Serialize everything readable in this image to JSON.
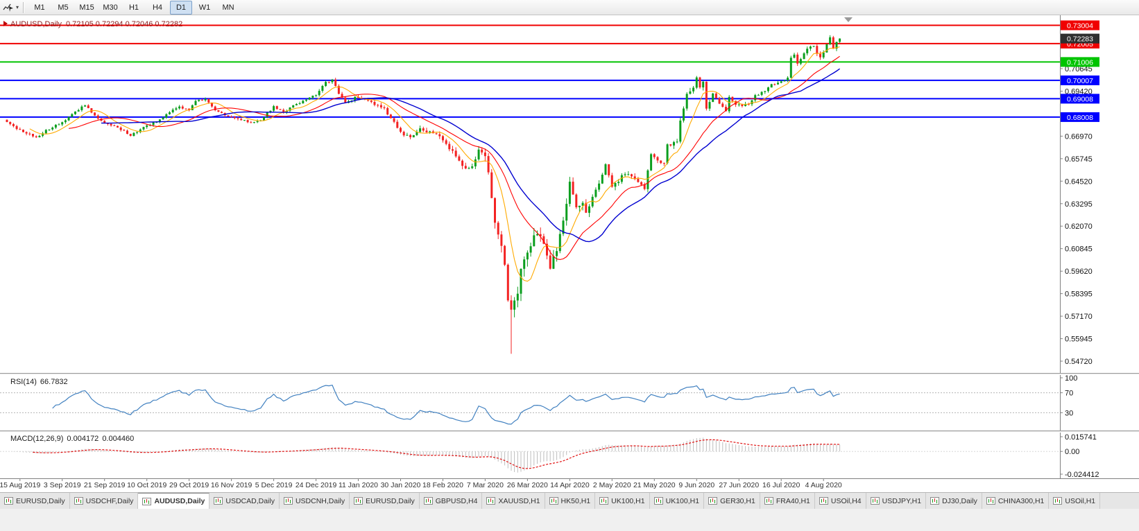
{
  "toolbar": {
    "timeframes": [
      {
        "label": "M1",
        "active": false
      },
      {
        "label": "M5",
        "active": false
      },
      {
        "label": "M15",
        "active": false
      },
      {
        "label": "M30",
        "active": false
      },
      {
        "label": "H1",
        "active": false
      },
      {
        "label": "H4",
        "active": false
      },
      {
        "label": "D1",
        "active": true
      },
      {
        "label": "W1",
        "active": false
      },
      {
        "label": "MN",
        "active": false
      }
    ]
  },
  "chart": {
    "symbol_title": "AUDUSD,Daily",
    "ohlc_text": "0.72105 0.72294 0.72046 0.72282",
    "current_price_label": "0.72283",
    "current_price": 0.72283,
    "price_range": {
      "top": 0.7355,
      "bottom": 0.5408
    },
    "levels": [
      {
        "label": "0.73004",
        "price": 0.73004,
        "color": "#f00000"
      },
      {
        "label": "0.72005",
        "price": 0.72005,
        "color": "#f00000"
      },
      {
        "label": "0.71006",
        "price": 0.71006,
        "color": "#00c400"
      },
      {
        "label": "0.70007",
        "price": 0.70007,
        "color": "#0000ff"
      },
      {
        "label": "0.69008",
        "price": 0.69008,
        "color": "#0000ff"
      },
      {
        "label": "0.68008",
        "price": 0.68008,
        "color": "#0000ff"
      }
    ],
    "axis_ticks": [
      {
        "label": "0.70645",
        "price": 0.70645
      },
      {
        "label": "0.69420",
        "price": 0.6942
      },
      {
        "label": "0.66970",
        "price": 0.6697
      },
      {
        "label": "0.65745",
        "price": 0.65745
      },
      {
        "label": "0.64520",
        "price": 0.6452
      },
      {
        "label": "0.63295",
        "price": 0.63295
      },
      {
        "label": "0.62070",
        "price": 0.6207
      },
      {
        "label": "0.60845",
        "price": 0.60845
      },
      {
        "label": "0.59620",
        "price": 0.5962
      },
      {
        "label": "0.58395",
        "price": 0.58395
      },
      {
        "label": "0.57170",
        "price": 0.5717
      },
      {
        "label": "0.55945",
        "price": 0.55945
      },
      {
        "label": "0.54720",
        "price": 0.5472
      }
    ]
  },
  "rsi_panel": {
    "name": "RSI(14)",
    "value": "66.7832",
    "levels": [
      70,
      30
    ],
    "scale_labels": [
      {
        "label": "100",
        "value": 100
      },
      {
        "label": "70",
        "value": 70
      },
      {
        "label": "30",
        "value": 30
      }
    ],
    "line_color": "#4080c0"
  },
  "macd_panel": {
    "name": "MACD(12,26,9)",
    "value_macd": "0.004172",
    "value_signal": "0.004460",
    "scale_max": 0.015741,
    "scale_min": -0.024412,
    "scale_labels": [
      {
        "label": "0.015741",
        "value": 0.015741
      },
      {
        "label": "0.00",
        "value": 0
      },
      {
        "label": "-0.024412",
        "value": -0.024412
      }
    ],
    "histogram_color": "#bdbdbd",
    "signal_color": "#e01010"
  },
  "time_axis": [
    "15 Aug 2019",
    "3 Sep 2019",
    "21 Sep 2019",
    "10 Oct 2019",
    "29 Oct 2019",
    "16 Nov 2019",
    "5 Dec 2019",
    "24 Dec 2019",
    "11 Jan 2020",
    "30 Jan 2020",
    "18 Feb 2020",
    "7 Mar 2020",
    "26 Mar 2020",
    "14 Apr 2020",
    "2 May 2020",
    "21 May 2020",
    "9 Jun 2020",
    "27 Jun 2020",
    "16 Jul 2020",
    "4 Aug 2020"
  ],
  "tabs": [
    {
      "label": "EURUSD,Daily",
      "active": false
    },
    {
      "label": "USDCHF,Daily",
      "active": false
    },
    {
      "label": "AUDUSD,Daily",
      "active": true
    },
    {
      "label": "USDCAD,Daily",
      "active": false
    },
    {
      "label": "USDCNH,Daily",
      "active": false
    },
    {
      "label": "EURUSD,Daily",
      "active": false
    },
    {
      "label": "GBPUSD,H4",
      "active": false
    },
    {
      "label": "XAUUSD,H1",
      "active": false
    },
    {
      "label": "HK50,H1",
      "active": false
    },
    {
      "label": "UK100,H1",
      "active": false
    },
    {
      "label": "UK100,H1",
      "active": false
    },
    {
      "label": "GER30,H1",
      "active": false
    },
    {
      "label": "FRA40,H1",
      "active": false
    },
    {
      "label": "USOil,H4",
      "active": false
    },
    {
      "label": "USDJPY,H1",
      "active": false
    },
    {
      "label": "DJ30,Daily",
      "active": false
    },
    {
      "label": "CHINA300,H1",
      "active": false
    },
    {
      "label": "USOil,H1",
      "active": false
    }
  ],
  "chart_data": {
    "type": "candlestick",
    "symbol": "AUDUSD",
    "timeframe": "D1",
    "title": "AUDUSD,Daily",
    "visible_range": {
      "start": "15 Aug 2019",
      "end": "Aug 2020"
    },
    "last_bar": {
      "open": 0.72105,
      "high": 0.72294,
      "low": 0.72046,
      "close": 0.72282
    },
    "candle_count": 257,
    "first_label_index": 4,
    "label_step": 13,
    "horizontal_levels": [
      0.73004,
      0.72005,
      0.71006,
      0.70007,
      0.69008,
      0.68008
    ],
    "close_anchors": [
      [
        0,
        0.6775
      ],
      [
        3,
        0.674
      ],
      [
        6,
        0.6715
      ],
      [
        9,
        0.669
      ],
      [
        12,
        0.673
      ],
      [
        17,
        0.677
      ],
      [
        21,
        0.683
      ],
      [
        24,
        0.6865
      ],
      [
        27,
        0.6805
      ],
      [
        30,
        0.677
      ],
      [
        34,
        0.6745
      ],
      [
        38,
        0.67
      ],
      [
        43,
        0.6755
      ],
      [
        47,
        0.6785
      ],
      [
        50,
        0.683
      ],
      [
        53,
        0.6855
      ],
      [
        56,
        0.684
      ],
      [
        58,
        0.689
      ],
      [
        61,
        0.6895
      ],
      [
        64,
        0.684
      ],
      [
        67,
        0.681
      ],
      [
        70,
        0.6795
      ],
      [
        75,
        0.677
      ],
      [
        78,
        0.678
      ],
      [
        80,
        0.6825
      ],
      [
        82,
        0.6855
      ],
      [
        85,
        0.683
      ],
      [
        88,
        0.686
      ],
      [
        91,
        0.6885
      ],
      [
        95,
        0.6925
      ],
      [
        98,
        0.699
      ],
      [
        100,
        0.7
      ],
      [
        102,
        0.693
      ],
      [
        104,
        0.6875
      ],
      [
        107,
        0.6905
      ],
      [
        110,
        0.69
      ],
      [
        113,
        0.687
      ],
      [
        116,
        0.6845
      ],
      [
        119,
        0.677
      ],
      [
        121,
        0.6715
      ],
      [
        124,
        0.669
      ],
      [
        127,
        0.6735
      ],
      [
        130,
        0.672
      ],
      [
        134,
        0.668
      ],
      [
        137,
        0.661
      ],
      [
        141,
        0.6515
      ],
      [
        143,
        0.6535
      ],
      [
        145,
        0.6625
      ],
      [
        147,
        0.6585
      ],
      [
        148,
        0.65
      ],
      [
        150,
        0.6232
      ],
      [
        152,
        0.611
      ],
      [
        153,
        0.599
      ],
      [
        154,
        0.5785
      ],
      [
        155,
        0.574
      ],
      [
        156,
        0.5795
      ],
      [
        157,
        0.583
      ],
      [
        158,
        0.5965
      ],
      [
        160,
        0.6065
      ],
      [
        162,
        0.617
      ],
      [
        164,
        0.6135
      ],
      [
        166,
        0.606
      ],
      [
        167,
        0.599
      ],
      [
        169,
        0.6085
      ],
      [
        171,
        0.623
      ],
      [
        173,
        0.6445
      ],
      [
        175,
        0.632
      ],
      [
        177,
        0.6335
      ],
      [
        178,
        0.629
      ],
      [
        181,
        0.6395
      ],
      [
        184,
        0.655
      ],
      [
        186,
        0.642
      ],
      [
        190,
        0.6495
      ],
      [
        193,
        0.647
      ],
      [
        196,
        0.6415
      ],
      [
        198,
        0.659
      ],
      [
        200,
        0.6565
      ],
      [
        202,
        0.6545
      ],
      [
        203,
        0.665
      ],
      [
        206,
        0.6665
      ],
      [
        207,
        0.679
      ],
      [
        209,
        0.692
      ],
      [
        211,
        0.697
      ],
      [
        212,
        0.7015
      ],
      [
        213,
        0.696
      ],
      [
        214,
        0.7
      ],
      [
        215,
        0.685
      ],
      [
        217,
        0.692
      ],
      [
        219,
        0.688
      ],
      [
        221,
        0.683
      ],
      [
        222,
        0.6905
      ],
      [
        224,
        0.6875
      ],
      [
        226,
        0.6865
      ],
      [
        228,
        0.687
      ],
      [
        230,
        0.6915
      ],
      [
        233,
        0.694
      ],
      [
        235,
        0.6975
      ],
      [
        237,
        0.6985
      ],
      [
        240,
        0.701
      ],
      [
        241,
        0.713
      ],
      [
        242,
        0.714
      ],
      [
        243,
        0.7095
      ],
      [
        245,
        0.715
      ],
      [
        247,
        0.719
      ],
      [
        248,
        0.7195
      ],
      [
        249,
        0.714
      ],
      [
        250,
        0.712
      ],
      [
        251,
        0.7155
      ],
      [
        252,
        0.72
      ],
      [
        253,
        0.7235
      ],
      [
        254,
        0.717
      ],
      [
        255,
        0.721
      ],
      [
        256,
        0.7228
      ]
    ],
    "volatility_anchors": [
      [
        0,
        0.0018
      ],
      [
        60,
        0.0018
      ],
      [
        95,
        0.002
      ],
      [
        120,
        0.0024
      ],
      [
        134,
        0.0032
      ],
      [
        144,
        0.0045
      ],
      [
        148,
        0.006
      ],
      [
        152,
        0.0085
      ],
      [
        156,
        0.0095
      ],
      [
        160,
        0.008
      ],
      [
        165,
        0.007
      ],
      [
        170,
        0.0058
      ],
      [
        175,
        0.005
      ],
      [
        182,
        0.0042
      ],
      [
        190,
        0.0036
      ],
      [
        200,
        0.0032
      ],
      [
        208,
        0.004
      ],
      [
        213,
        0.0042
      ],
      [
        218,
        0.003
      ],
      [
        228,
        0.0024
      ],
      [
        238,
        0.0022
      ],
      [
        248,
        0.0026
      ],
      [
        256,
        0.0028
      ]
    ],
    "forced_low": {
      "index": 155,
      "price": 0.5512
    },
    "moving_averages": [
      {
        "period": 8,
        "color": "#ffaa00",
        "width": 1.1
      },
      {
        "period": 20,
        "color": "#ff0000",
        "width": 1.1
      },
      {
        "period": 30,
        "color": "#0000d0",
        "width": 1.4
      }
    ],
    "colors": {
      "up": "#0a9e1e",
      "down": "#f32222",
      "background": "#ffffff"
    },
    "indicators": [
      {
        "name": "RSI",
        "params": [
          14
        ],
        "current_value": 66.7832
      },
      {
        "name": "MACD",
        "params": [
          12,
          26,
          9
        ],
        "current_values": [
          0.004172,
          0.00446
        ]
      }
    ]
  }
}
